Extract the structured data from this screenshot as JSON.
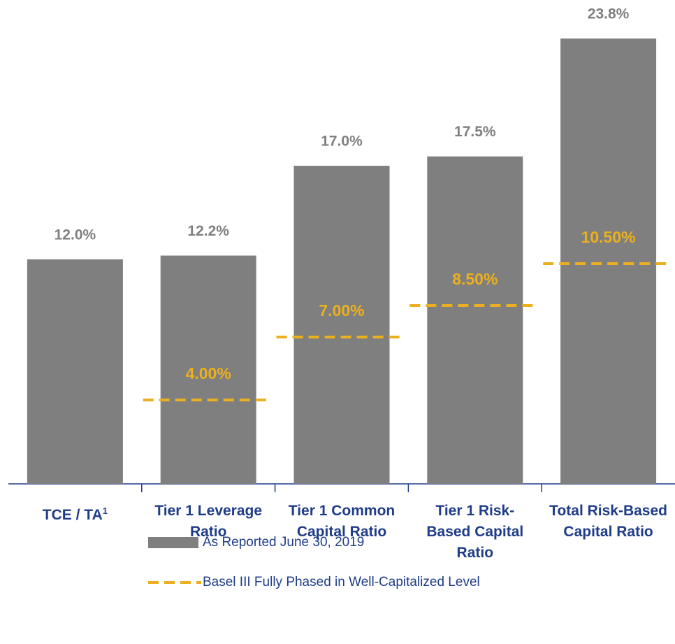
{
  "chart_data": {
    "type": "bar",
    "categories": [
      "TCE / TA",
      "Tier 1 Leverage Ratio",
      "Tier 1 Common Capital Ratio",
      "Tier 1 Risk-Based Capital Ratio",
      "Total Risk-Based Capital Ratio"
    ],
    "category_footnote": "1",
    "series": [
      {
        "name": "As Reported June 30, 2019",
        "color": "#7f7f7f",
        "values": [
          12.0,
          12.2,
          17.0,
          17.5,
          23.8
        ],
        "value_labels": [
          "12.0%",
          "12.2%",
          "17.0%",
          "17.5%",
          "23.8%"
        ]
      },
      {
        "name": "Basel III Fully Phased in Well-Capitalized Level",
        "type": "line",
        "dash": true,
        "axis": "y2",
        "color": "#ebb01e",
        "values": [
          null,
          4.0,
          7.0,
          8.5,
          10.5
        ],
        "value_labels": [
          null,
          "4.00%",
          "7.00%",
          "8.50%",
          "10.50%"
        ]
      }
    ],
    "ylim": [
      0,
      25
    ],
    "y2lim": [
      0,
      22.3
    ]
  }
}
